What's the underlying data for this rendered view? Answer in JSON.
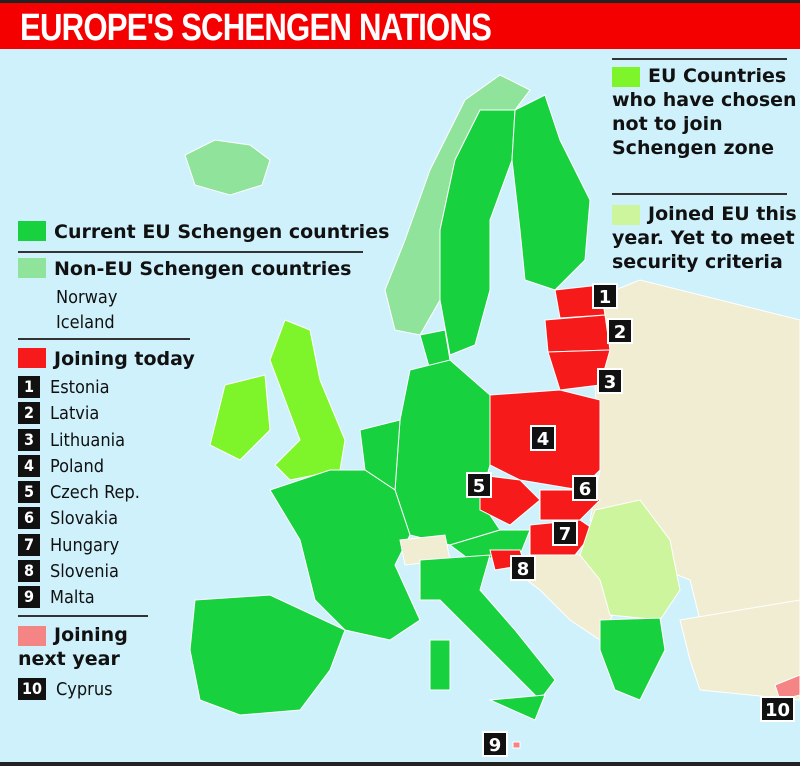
{
  "title": "EUROPE'S SCHENGEN NATIONS",
  "colors": {
    "sea": "#cff1fb",
    "current_schengen": "#18d13e",
    "non_eu_schengen": "#8fe39a",
    "joining_today": "#f61a1a",
    "joining_next_year": "#f58585",
    "opt_out": "#7ef52a",
    "joined_eu": "#cdf59d",
    "other_land": "#f1edd3"
  },
  "legend": {
    "current": "Current EU Schengen countries",
    "non_eu": "Non-EU Schengen countries",
    "non_eu_list": [
      "Norway",
      "Iceland"
    ],
    "joining_today": "Joining today",
    "joining_today_list": [
      {
        "n": "1",
        "name": "Estonia"
      },
      {
        "n": "2",
        "name": "Latvia"
      },
      {
        "n": "3",
        "name": "Lithuania"
      },
      {
        "n": "4",
        "name": "Poland"
      },
      {
        "n": "5",
        "name": "Czech Rep."
      },
      {
        "n": "6",
        "name": "Slovakia"
      },
      {
        "n": "7",
        "name": "Hungary"
      },
      {
        "n": "8",
        "name": "Slovenia"
      },
      {
        "n": "9",
        "name": "Malta"
      }
    ],
    "joining_next": "Joining next year",
    "joining_next_list": [
      {
        "n": "10",
        "name": "Cyprus"
      }
    ],
    "opt_out": "EU Countries who have chosen not to join Schengen zone",
    "joined_eu": "Joined EU this year. Yet to meet security criteria"
  },
  "badges": [
    "1",
    "2",
    "3",
    "4",
    "5",
    "6",
    "7",
    "8",
    "9",
    "10"
  ]
}
